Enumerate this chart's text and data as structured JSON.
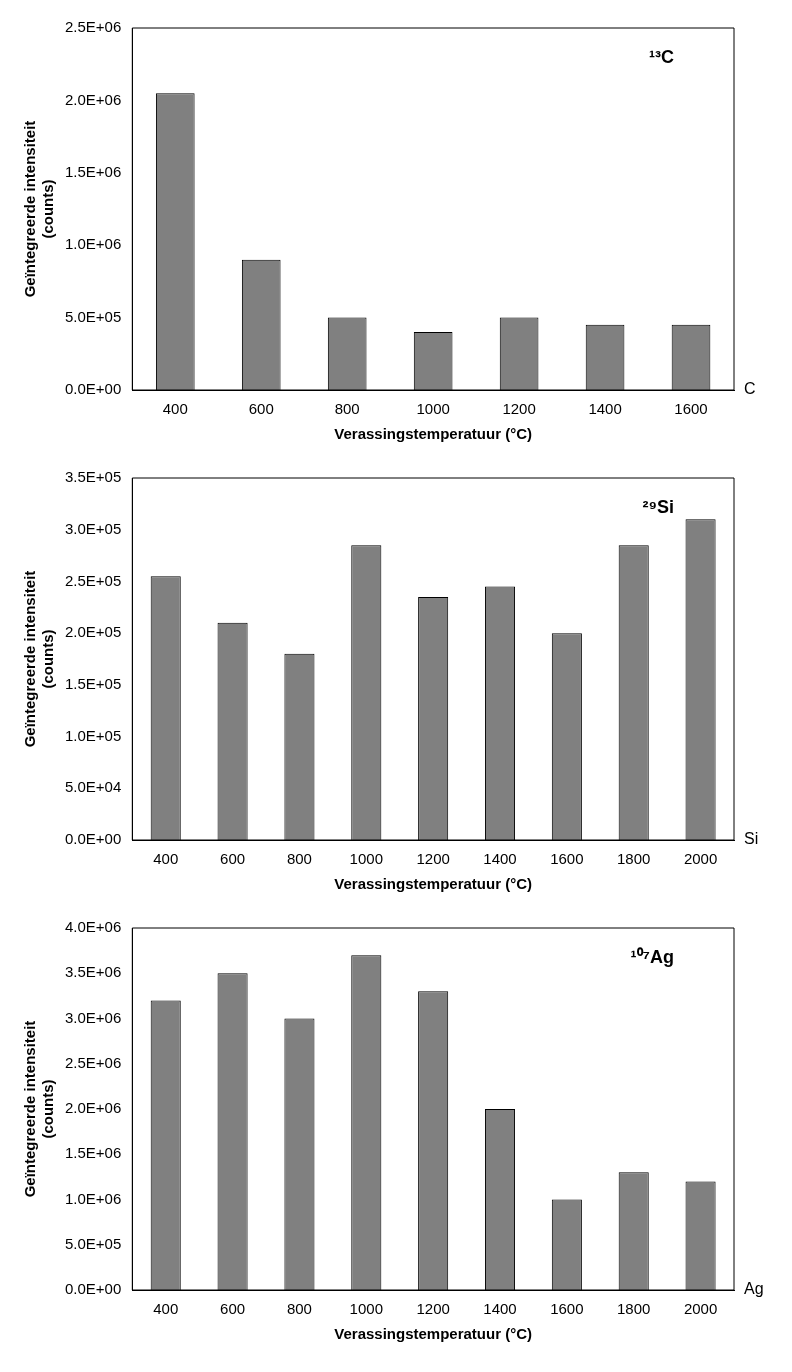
{
  "chart_data": [
    {
      "type": "bar",
      "ylabel": "Geïntegreerde intensiteit\n(counts)",
      "xlabel": "Verassingstemperatuur (°C)",
      "annotations": [
        "¹³C"
      ],
      "categories": [
        "400",
        "600",
        "800",
        "1000",
        "1200",
        "1400",
        "1600"
      ],
      "series": [
        {
          "name": "C",
          "color": "#808080",
          "values": [
            2050000,
            900000,
            500000,
            400000,
            500000,
            450000,
            450000
          ]
        }
      ],
      "ylim": [
        0,
        2500000
      ],
      "yticks": [
        {
          "value": 0,
          "label": "0.0E+00"
        },
        {
          "value": 500000,
          "label": "5.0E+05"
        },
        {
          "value": 1000000,
          "label": "1.0E+06"
        },
        {
          "value": 1500000,
          "label": "1.5E+06"
        },
        {
          "value": 2000000,
          "label": "2.0E+06"
        },
        {
          "value": 2500000,
          "label": "2.5E+06"
        }
      ]
    },
    {
      "type": "bar",
      "ylabel": "Geïntegreerde intensiteit\n(counts)",
      "xlabel": "Verassingstemperatuur (°C)",
      "annotations": [
        "²⁹Si"
      ],
      "categories": [
        "400",
        "600",
        "800",
        "1000",
        "1200",
        "1400",
        "1600",
        "1800",
        "2000"
      ],
      "series": [
        {
          "name": "Si",
          "color": "#808080",
          "values": [
            255000,
            210000,
            180000,
            285000,
            235000,
            245000,
            200000,
            285000,
            310000
          ]
        }
      ],
      "ylim": [
        0,
        350000
      ],
      "yticks": [
        {
          "value": 0,
          "label": "0.0E+00"
        },
        {
          "value": 50000,
          "label": "5.0E+04"
        },
        {
          "value": 100000,
          "label": "1.0E+05"
        },
        {
          "value": 150000,
          "label": "1.5E+05"
        },
        {
          "value": 200000,
          "label": "2.0E+05"
        },
        {
          "value": 250000,
          "label": "2.5E+05"
        },
        {
          "value": 300000,
          "label": "3.0E+05"
        },
        {
          "value": 350000,
          "label": "3.5E+05"
        }
      ]
    },
    {
      "type": "bar",
      "ylabel": "Geïntegreerde intensiteit\n(counts)",
      "xlabel": "Verassingstemperatuur (°C)",
      "annotations": [
        "¹⁰⁷Ag"
      ],
      "categories": [
        "400",
        "600",
        "800",
        "1000",
        "1200",
        "1400",
        "1600",
        "1800",
        "2000"
      ],
      "series": [
        {
          "name": "Ag",
          "color": "#808080",
          "values": [
            3200000,
            3500000,
            3000000,
            3700000,
            3300000,
            2000000,
            1000000,
            1300000,
            1200000
          ]
        }
      ],
      "ylim": [
        0,
        4000000
      ],
      "yticks": [
        {
          "value": 0,
          "label": "0.0E+00"
        },
        {
          "value": 500000,
          "label": "5.0E+05"
        },
        {
          "value": 1000000,
          "label": "1.0E+06"
        },
        {
          "value": 1500000,
          "label": "1.5E+06"
        },
        {
          "value": 2000000,
          "label": "2.0E+06"
        },
        {
          "value": 2500000,
          "label": "2.5E+06"
        },
        {
          "value": 3000000,
          "label": "3.0E+06"
        },
        {
          "value": 3500000,
          "label": "3.5E+06"
        },
        {
          "value": 4000000,
          "label": "4.0E+06"
        }
      ]
    }
  ]
}
